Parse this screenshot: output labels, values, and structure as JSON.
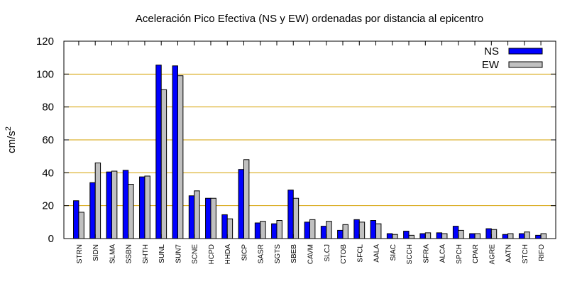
{
  "chart_data": {
    "type": "bar",
    "title": "Aceleración Pico Efectiva (NS y EW) ordenadas por distancia al epicentro",
    "ylabel": "cm/s",
    "ylabel_sup": "2",
    "xlabel": "",
    "ylim": [
      0,
      120
    ],
    "yticks": [
      0,
      20,
      40,
      60,
      80,
      100,
      120
    ],
    "grid": "horizontal",
    "legend_position": "top-right",
    "categories": [
      "STRN",
      "SIDN",
      "SLMA",
      "SSBN",
      "SHTH",
      "SUNL",
      "SUN7",
      "SCNE",
      "HCPD",
      "HHDA",
      "SICP",
      "SASR",
      "SGTS",
      "SBEB",
      "CAVM",
      "SLCJ",
      "CTOB",
      "SFCL",
      "AALA",
      "SIAC",
      "SCCH",
      "SFRA",
      "ALCA",
      "SPCH",
      "CPAR",
      "AGRE",
      "AATN",
      "STCH",
      "RIFO"
    ],
    "series": [
      {
        "name": "NS",
        "color": "#0000ff",
        "values": [
          23,
          34,
          40.5,
          41.5,
          37.5,
          105.5,
          105,
          26,
          24.5,
          14.5,
          42,
          9.5,
          9,
          29.5,
          10,
          7.5,
          5,
          11.5,
          11,
          3,
          4.5,
          3,
          3.5,
          7.5,
          3,
          6,
          2.5,
          3,
          2
        ]
      },
      {
        "name": "EW",
        "color": "#c0c0c0",
        "values": [
          16,
          46,
          41,
          33,
          38,
          90.5,
          99,
          29,
          24.5,
          12,
          48,
          10.5,
          11,
          24.5,
          11.5,
          10.5,
          8.5,
          10,
          9,
          2.5,
          2,
          3.5,
          3,
          5,
          3,
          5.5,
          3,
          4,
          3
        ]
      }
    ]
  }
}
